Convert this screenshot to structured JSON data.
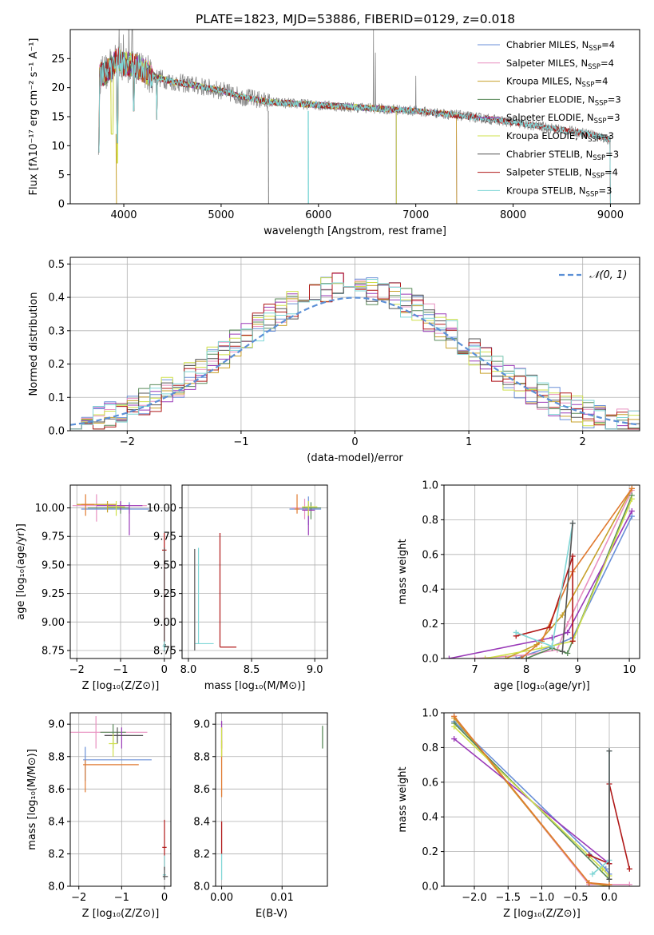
{
  "colors": {
    "Chabrier MILES": "#6a8fd8",
    "Salpeter MILES": "#e890c0",
    "Kroupa MILES": "#c7a02a",
    "Chabrier ELODIE": "#5a8a5a",
    "Salpeter ELODIE": "#9a3ab8",
    "Kroupa ELODIE": "#cfe04a",
    "Chabrier STELIB": "#555555",
    "Salpeter STELIB": "#b01818",
    "Kroupa STELIB": "#7fd6d6",
    "data": "#888888",
    "gauss": "#5b8fd6",
    "orange": "#e07a30"
  },
  "chart_data": [
    {
      "id": "spectrum",
      "type": "line",
      "title": "PLATE=1823, MJD=53886, FIBERID=0129, z=0.018",
      "xlabel": "wavelength [Angstrom, rest frame]",
      "ylabel": "Flux [fλ10⁻¹⁷ erg cm⁻² s⁻¹ A⁻¹]",
      "xlim": [
        3450,
        9300
      ],
      "ylim": [
        0,
        30
      ],
      "xticks": [
        "4000",
        "5000",
        "6000",
        "7000",
        "8000",
        "9000"
      ],
      "yticks": [
        "0",
        "5",
        "10",
        "15",
        "20",
        "25"
      ],
      "legend_placement": "top-right",
      "legend": [
        {
          "label": "Chabrier MILES, N",
          "sub": "SSP",
          "suffix": "=4"
        },
        {
          "label": "Salpeter MILES, N",
          "sub": "SSP",
          "suffix": "=4"
        },
        {
          "label": "Kroupa MILES, N",
          "sub": "SSP",
          "suffix": "=4"
        },
        {
          "label": "Chabrier ELODIE, N",
          "sub": "SSP",
          "suffix": "=3"
        },
        {
          "label": "Salpeter ELODIE, N",
          "sub": "SSP",
          "suffix": "=3"
        },
        {
          "label": "Kroupa ELODIE, N",
          "sub": "SSP",
          "suffix": "=3"
        },
        {
          "label": "Chabrier STELIB, N",
          "sub": "SSP",
          "suffix": "=3"
        },
        {
          "label": "Salpeter STELIB, N",
          "sub": "SSP",
          "suffix": "=4"
        },
        {
          "label": "Kroupa STELIB, N",
          "sub": "SSP",
          "suffix": "=3"
        }
      ],
      "continuum": [
        [
          3750,
          22
        ],
        [
          3850,
          23
        ],
        [
          3950,
          25
        ],
        [
          4000,
          24
        ],
        [
          4100,
          24
        ],
        [
          4200,
          23
        ],
        [
          4300,
          22
        ],
        [
          4500,
          21
        ],
        [
          4700,
          20.5
        ],
        [
          5000,
          19.5
        ],
        [
          5200,
          18.5
        ],
        [
          5500,
          17.5
        ],
        [
          6000,
          17
        ],
        [
          6500,
          16.5
        ],
        [
          7000,
          16
        ],
        [
          7400,
          15.3
        ],
        [
          7800,
          14.5
        ],
        [
          8000,
          14
        ],
        [
          8400,
          13
        ],
        [
          8800,
          12
        ],
        [
          9000,
          11
        ]
      ],
      "model_ends": {
        "MILES": 7420,
        "ELODIE": 6800,
        "STELIB": 9000
      }
    },
    {
      "id": "residuals",
      "type": "line",
      "xlabel": "(data-model)/error",
      "ylabel": "Normed distribution",
      "xlim": [
        -2.5,
        2.5
      ],
      "ylim": [
        0,
        0.52
      ],
      "xticks": [
        "−2",
        "−1",
        "0",
        "1",
        "2"
      ],
      "yticks": [
        "0.0",
        "0.1",
        "0.2",
        "0.3",
        "0.4",
        "0.5"
      ],
      "legend": "𝒩(0, 1)",
      "legend_placement": "top-right",
      "bin_width": 0.1,
      "grid": true
    },
    {
      "id": "age_vs_Z",
      "type": "scatter",
      "xlabel": "Z [log₁₀(Z/Z⊙)]",
      "ylabel": "age  [log₁₀(age/yr)]",
      "xlim": [
        -2.15,
        0.15
      ],
      "ylim": [
        8.68,
        10.2
      ],
      "xticks": [
        "−2",
        "−1",
        "0"
      ],
      "yticks": [
        "8.75",
        "9.00",
        "9.25",
        "9.50",
        "9.75",
        "10.00"
      ],
      "grid": true
    },
    {
      "id": "age_vs_mass",
      "type": "scatter",
      "xlabel": "mass [log₁₀(M/M⊙)]",
      "xlim": [
        7.95,
        9.1
      ],
      "ylim": [
        8.68,
        10.2
      ],
      "xticks": [
        "8.0",
        "8.5",
        "9.0"
      ],
      "yticks": [
        "8.75",
        "9.00",
        "9.25",
        "9.50",
        "9.75",
        "10.00"
      ],
      "grid": true
    },
    {
      "id": "mw_vs_age",
      "type": "line",
      "xlabel": "age  [log₁₀(age/yr)]",
      "ylabel": "mass weight",
      "xlim": [
        6.4,
        10.2
      ],
      "ylim": [
        0,
        1
      ],
      "xticks": [
        "7",
        "8",
        "9",
        "10"
      ],
      "yticks": [
        "0.0",
        "0.2",
        "0.4",
        "0.6",
        "0.8",
        "1.0"
      ],
      "grid": true
    },
    {
      "id": "mass_vs_Z",
      "type": "scatter",
      "xlabel": "Z [log₁₀(Z/Z⊙)]",
      "ylabel": "mass [log₁₀(M/M⊙)]",
      "xlim": [
        -2.2,
        0.15
      ],
      "ylim": [
        8.0,
        9.07
      ],
      "xticks": [
        "−2",
        "−1",
        "0"
      ],
      "yticks": [
        "8.0",
        "8.2",
        "8.4",
        "8.6",
        "8.8",
        "9.0"
      ],
      "grid": true
    },
    {
      "id": "mass_vs_ebv",
      "type": "scatter",
      "xlabel": "E(B-V)",
      "xlim": [
        -0.001,
        0.0175
      ],
      "ylim": [
        8.0,
        9.07
      ],
      "xticks": [
        "0.00",
        "0.01"
      ],
      "yticks": [
        "8.0",
        "8.2",
        "8.4",
        "8.6",
        "8.8",
        "9.0"
      ],
      "grid": true
    },
    {
      "id": "mw_vs_Z",
      "type": "line",
      "xlabel": "Z [log₁₀(Z/Z⊙)]",
      "ylabel": "mass weight",
      "xlim": [
        -2.45,
        0.45
      ],
      "ylim": [
        0,
        1
      ],
      "xticks": [
        "−2.0",
        "−1.5",
        "−1.0",
        "−0.5",
        "0.0"
      ],
      "yticks": [
        "0.0",
        "0.2",
        "0.4",
        "0.6",
        "0.8",
        "1.0"
      ],
      "grid": true
    }
  ]
}
